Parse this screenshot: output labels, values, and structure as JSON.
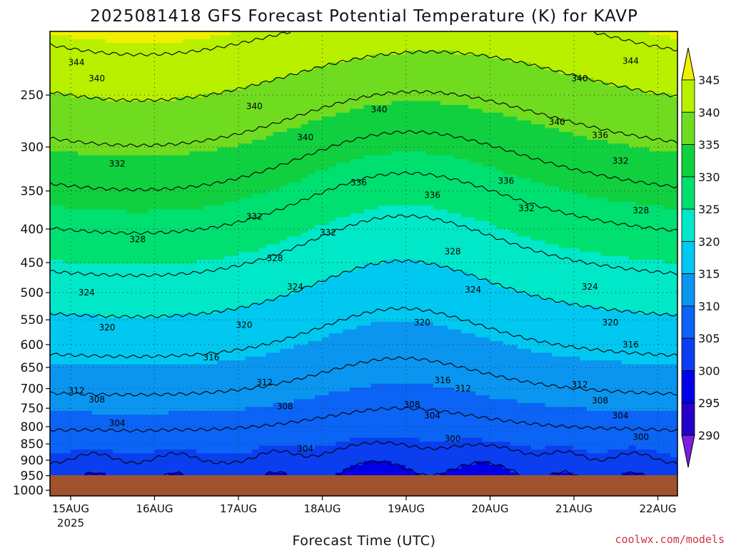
{
  "chart_data": {
    "type": "heatmap",
    "title": "2025081418 GFS Forecast Potential Temperature (K) for KAVP",
    "xlabel": "Forecast Time (UTC)",
    "ylabel": "",
    "credit": "coolwx.com/models",
    "x_ticks": [
      "15AUG",
      "16AUG",
      "17AUG",
      "18AUG",
      "19AUG",
      "20AUG",
      "21AUG",
      "22AUG"
    ],
    "x_subtick": "2025",
    "y_ticks": [
      250,
      300,
      350,
      400,
      450,
      500,
      550,
      600,
      650,
      700,
      750,
      800,
      850,
      900,
      950,
      1000
    ],
    "y_scale": "log-pressure",
    "y_range_hPa": [
      200,
      1020
    ],
    "x_range_days": [
      "15AUG",
      "22AUG"
    ],
    "grid": "dotted",
    "colorbar": {
      "ticks": [
        290,
        295,
        300,
        305,
        310,
        315,
        320,
        325,
        330,
        335,
        340,
        345
      ],
      "colors": [
        "#7a1fe0",
        "#2400c8",
        "#0000e8",
        "#0a3ef0",
        "#0b64f5",
        "#0a96f0",
        "#00c8f0",
        "#00e8c8",
        "#00e070",
        "#10d040",
        "#70dc20",
        "#b8f000",
        "#f0f000"
      ],
      "extend": "both"
    },
    "contour_levels": [
      292,
      296,
      300,
      304,
      308,
      312,
      316,
      320,
      324,
      328,
      332,
      336,
      340,
      344
    ],
    "contour_labels": [
      {
        "day": "15AUG",
        "hPa": 223,
        "text": "344"
      },
      {
        "day": "15AUG",
        "hPa": 236,
        "text": "340"
      },
      {
        "day": "15AUG",
        "hPa": 318,
        "text": "332"
      },
      {
        "day": "15AUG",
        "hPa": 415,
        "text": "328"
      },
      {
        "day": "15AUG",
        "hPa": 500,
        "text": "324"
      },
      {
        "day": "15AUG",
        "hPa": 565,
        "text": "320"
      },
      {
        "day": "16AUG",
        "hPa": 628,
        "text": "316"
      },
      {
        "day": "15AUG",
        "hPa": 705,
        "text": "312"
      },
      {
        "day": "15AUG",
        "hPa": 728,
        "text": "308"
      },
      {
        "day": "15AUG",
        "hPa": 790,
        "text": "304"
      },
      {
        "day": "17AUG",
        "hPa": 290,
        "text": "340"
      },
      {
        "day": "17AUG",
        "hPa": 383,
        "text": "332"
      },
      {
        "day": "17AUG",
        "hPa": 443,
        "text": "328"
      },
      {
        "day": "17AUG",
        "hPa": 490,
        "text": "324"
      },
      {
        "day": "17AUG",
        "hPa": 560,
        "text": "320"
      },
      {
        "day": "17AUG",
        "hPa": 685,
        "text": "312"
      },
      {
        "day": "17AUG",
        "hPa": 745,
        "text": "308"
      },
      {
        "day": "17AUG",
        "hPa": 865,
        "text": "304"
      },
      {
        "day": "17AUG",
        "hPa": 260,
        "text": "340"
      },
      {
        "day": "18AUG",
        "hPa": 340,
        "text": "336"
      },
      {
        "day": "18AUG",
        "hPa": 263,
        "text": "340"
      },
      {
        "day": "18AUG",
        "hPa": 405,
        "text": "332"
      },
      {
        "day": "19AUG",
        "hPa": 355,
        "text": "336"
      },
      {
        "day": "19AUG",
        "hPa": 433,
        "text": "328"
      },
      {
        "day": "19AUG",
        "hPa": 495,
        "text": "324"
      },
      {
        "day": "19AUG",
        "hPa": 555,
        "text": "320"
      },
      {
        "day": "19AUG",
        "hPa": 680,
        "text": "316"
      },
      {
        "day": "19AUG",
        "hPa": 700,
        "text": "312"
      },
      {
        "day": "19AUG",
        "hPa": 740,
        "text": "308"
      },
      {
        "day": "19AUG",
        "hPa": 770,
        "text": "304"
      },
      {
        "day": "19AUG",
        "hPa": 835,
        "text": "300"
      },
      {
        "day": "20AUG",
        "hPa": 275,
        "text": "340"
      },
      {
        "day": "20AUG",
        "hPa": 338,
        "text": "336"
      },
      {
        "day": "20AUG",
        "hPa": 372,
        "text": "332"
      },
      {
        "day": "21AUG",
        "hPa": 222,
        "text": "344"
      },
      {
        "day": "21AUG",
        "hPa": 236,
        "text": "340"
      },
      {
        "day": "21AUG",
        "hPa": 288,
        "text": "336"
      },
      {
        "day": "21AUG",
        "hPa": 315,
        "text": "332"
      },
      {
        "day": "21AUG",
        "hPa": 375,
        "text": "328"
      },
      {
        "day": "21AUG",
        "hPa": 490,
        "text": "324"
      },
      {
        "day": "21AUG",
        "hPa": 555,
        "text": "320"
      },
      {
        "day": "21AUG",
        "hPa": 600,
        "text": "316"
      },
      {
        "day": "21AUG",
        "hPa": 690,
        "text": "312"
      },
      {
        "day": "21AUG",
        "hPa": 730,
        "text": "308"
      },
      {
        "day": "21AUG",
        "hPa": 770,
        "text": "304"
      },
      {
        "day": "21AUG",
        "hPa": 830,
        "text": "300"
      }
    ],
    "surface_color": "#a0522d"
  }
}
